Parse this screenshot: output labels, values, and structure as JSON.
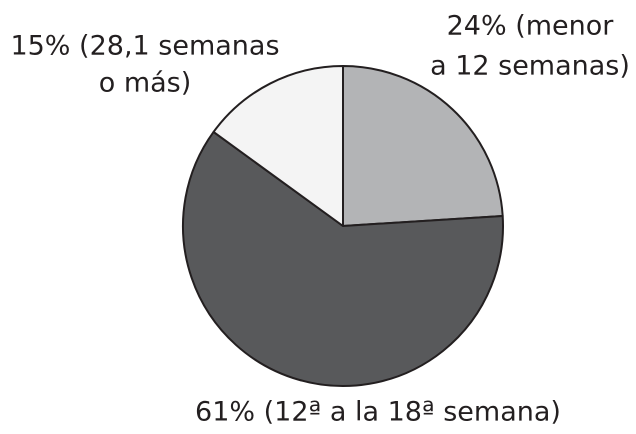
{
  "chart_data": {
    "type": "pie",
    "values": [
      24,
      61,
      15
    ],
    "labels": [
      [
        "24% (menor",
        "a 12 semanas)"
      ],
      [
        "61% (12ª a la 18ª semana)"
      ],
      [
        "15% (28,1 semanas",
        "o más)"
      ]
    ],
    "colors": [
      "#b3b4b6",
      "#58595b",
      "#f4f4f4"
    ]
  }
}
